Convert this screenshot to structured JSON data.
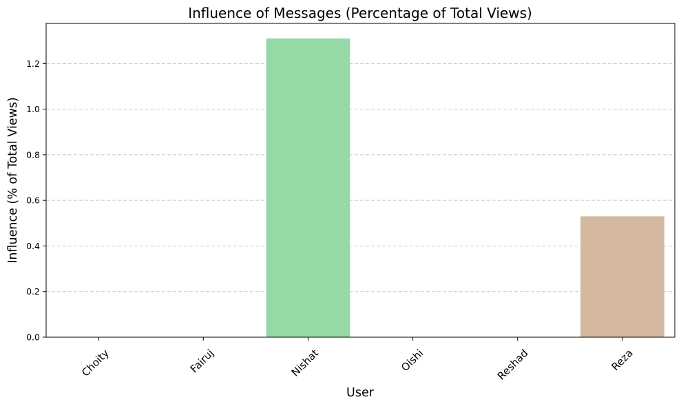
{
  "chart_data": {
    "type": "bar",
    "title": "Influence of Messages (Percentage of Total Views)",
    "xlabel": "User",
    "ylabel": "Influence (% of Total Views)",
    "categories": [
      "Choity",
      "Fairuj",
      "Nishat",
      "Oishi",
      "Reshad",
      "Reza"
    ],
    "values": [
      0,
      0,
      1.31,
      0,
      0,
      0.53
    ],
    "colors": [
      "#8b8bd6",
      "#a8c8e8",
      "#97d8a7",
      "#e8a0a0",
      "#c8a8e0",
      "#d4b9a0"
    ],
    "ylim": [
      0,
      1.376
    ],
    "yticks": [
      0.0,
      0.2,
      0.4,
      0.6,
      0.8,
      1.0,
      1.2
    ],
    "ytick_labels": [
      "0.0",
      "0.2",
      "0.4",
      "0.6",
      "0.8",
      "1.0",
      "1.2"
    ],
    "grid": "y-dashed",
    "x_tick_rotation": 45
  }
}
